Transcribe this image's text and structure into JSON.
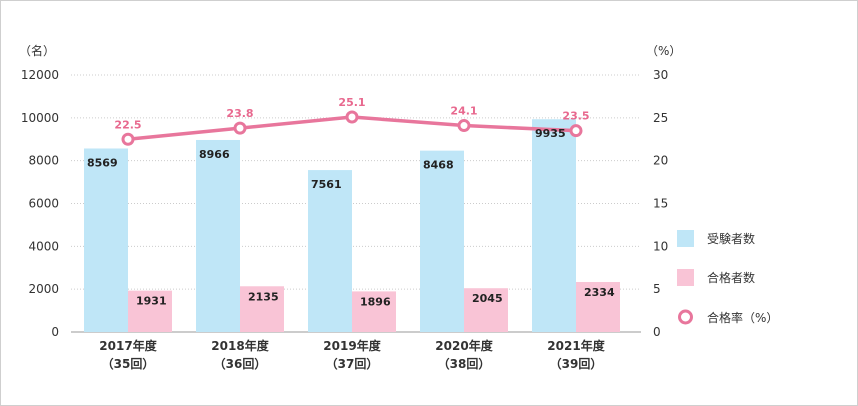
{
  "chart_data": {
    "type": "bar",
    "categories": [
      "2017年度",
      "2018年度",
      "2019年度",
      "2020年度",
      "2021年度"
    ],
    "category_sublabels": [
      "（35回）",
      "（36回）",
      "（37回）",
      "（38回）",
      "（39回）"
    ],
    "series": [
      {
        "name": "受験者数",
        "type": "bar",
        "axis": "left",
        "values": [
          8569,
          8966,
          7561,
          8468,
          9935
        ],
        "color": "#bfe6f7"
      },
      {
        "name": "合格者数",
        "type": "bar",
        "axis": "left",
        "values": [
          1931,
          2135,
          1896,
          2045,
          2334
        ],
        "color": "#f9c4d6"
      },
      {
        "name": "合格率（%）",
        "type": "line",
        "axis": "right",
        "values": [
          22.5,
          23.8,
          25.1,
          24.1,
          23.5
        ],
        "color": "#e8769c"
      }
    ],
    "y_left": {
      "unit": "（名）",
      "min": 0,
      "max": 12000,
      "ticks": [
        0,
        2000,
        4000,
        6000,
        8000,
        10000,
        12000
      ]
    },
    "y_right": {
      "unit": "（%）",
      "min": 0,
      "max": 30,
      "ticks": [
        0,
        5,
        10,
        15,
        20,
        25,
        30
      ]
    },
    "grid": "dotted-horizontal",
    "legend_position": "right"
  }
}
